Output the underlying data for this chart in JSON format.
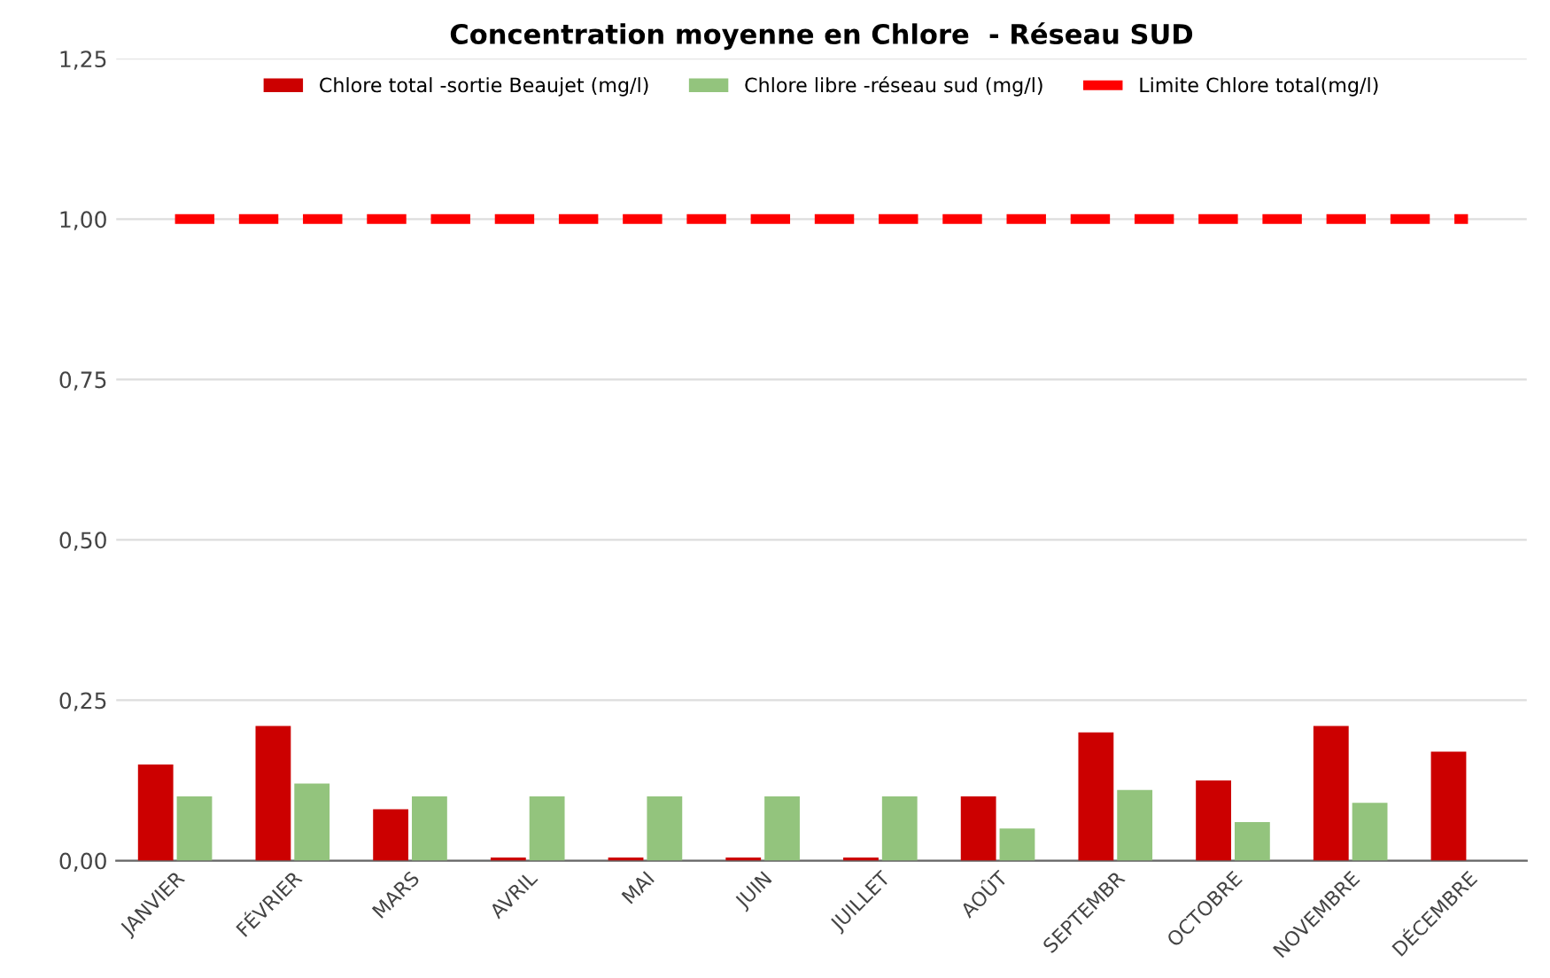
{
  "chart_data": {
    "type": "bar",
    "title": "Concentration moyenne en Chlore  - Réseau SUD",
    "categories": [
      "JANVIER",
      "FÉVRIER",
      "MARS",
      "AVRIL",
      "MAI",
      "JUIN",
      "JUILLET",
      "AOÛT",
      "SEPTEMBR",
      "OCTOBRE",
      "NOVEMBRE",
      "DÉCEMBRE"
    ],
    "series": [
      {
        "name": "Chlore total -sortie Beaujet (mg/l)",
        "color": "#cc0000",
        "values": [
          0.15,
          0.21,
          0.08,
          0.005,
          0.005,
          0.005,
          0.005,
          0.1,
          0.2,
          0.125,
          0.21,
          0.17
        ]
      },
      {
        "name": "Chlore libre -réseau sud (mg/l)",
        "color": "#93c47d",
        "values": [
          0.1,
          0.12,
          0.1,
          0.1,
          0.1,
          0.1,
          0.1,
          0.05,
          0.11,
          0.06,
          0.09,
          null
        ]
      },
      {
        "name": "Limite Chlore total(mg/l)",
        "color": "#ff0000",
        "type": "line",
        "line_style": "dashed",
        "values": [
          1.0,
          1.0,
          1.0,
          1.0,
          1.0,
          1.0,
          1.0,
          1.0,
          1.0,
          1.0,
          1.0,
          1.0
        ]
      }
    ],
    "ylim": [
      0,
      1.25
    ],
    "yticks": [
      {
        "value": 0,
        "label": "0,00"
      },
      {
        "value": 0.25,
        "label": "0,25"
      },
      {
        "value": 0.5,
        "label": "0,50"
      },
      {
        "value": 0.75,
        "label": "0,75"
      },
      {
        "value": 1.0,
        "label": "1,00"
      },
      {
        "value": 1.25,
        "label": "1,25"
      }
    ],
    "grid": "y",
    "legend": "top"
  }
}
